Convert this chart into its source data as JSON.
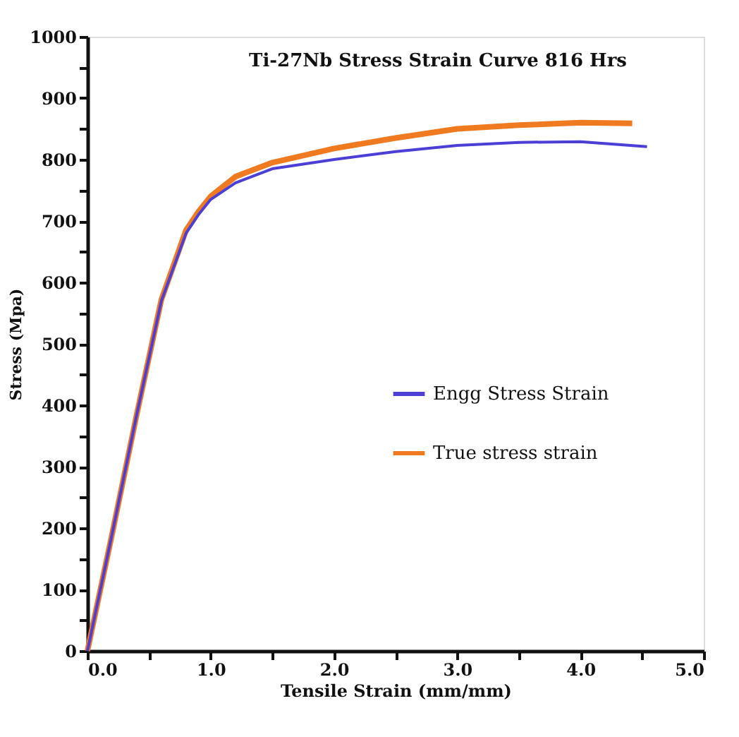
{
  "chart_data": {
    "type": "line",
    "title": "Ti-27Nb Stress Strain Curve 816 Hrs",
    "xlabel": "Tensile Strain (mm/mm)",
    "ylabel": "Stress (Mpa)",
    "xlim": [
      0,
      5
    ],
    "ylim": [
      0,
      1000
    ],
    "xticks": [
      {
        "value": 0,
        "label": "0.0"
      },
      {
        "value": 0.5,
        "label": null
      },
      {
        "value": 1,
        "label": "1.0"
      },
      {
        "value": 1.5,
        "label": null
      },
      {
        "value": 2,
        "label": "2.0"
      },
      {
        "value": 2.5,
        "label": null
      },
      {
        "value": 3,
        "label": "3.0"
      },
      {
        "value": 3.5,
        "label": null
      },
      {
        "value": 4,
        "label": "4.0"
      },
      {
        "value": 4.5,
        "label": null
      },
      {
        "value": 5,
        "label": "5.0"
      }
    ],
    "yticks": [
      0,
      {
        "value": 50,
        "label": null
      },
      100,
      {
        "value": 150,
        "label": null
      },
      200,
      {
        "value": 250,
        "label": null
      },
      300,
      {
        "value": 350,
        "label": null
      },
      400,
      {
        "value": 450,
        "label": null
      },
      500,
      {
        "value": 550,
        "label": null
      },
      600,
      {
        "value": 650,
        "label": null
      },
      700,
      {
        "value": 750,
        "label": null
      },
      800,
      {
        "value": 850,
        "label": null
      },
      900,
      {
        "value": 950,
        "label": null
      },
      1000
    ],
    "grid": false,
    "legend": "right",
    "marker": "none",
    "line_style": "solid",
    "series": [
      {
        "name": "Engg Stress Strain",
        "color": "#4b3fd6",
        "x": [
          0,
          0.2,
          0.4,
          0.6,
          0.8,
          0.9,
          1.0,
          1.2,
          1.5,
          2.0,
          2.5,
          3.0,
          3.5,
          4.0,
          4.54
        ],
        "values": [
          0,
          190,
          385,
          570,
          680,
          710,
          735,
          762,
          785,
          800,
          813,
          823,
          828,
          829,
          821
        ]
      },
      {
        "name": "True stress strain",
        "color": "#f07a20",
        "x": [
          0,
          0.2,
          0.4,
          0.6,
          0.8,
          0.9,
          1.0,
          1.2,
          1.5,
          2.0,
          2.5,
          3.0,
          3.5,
          4.0,
          4.42
        ],
        "values": [
          0,
          190,
          385,
          572,
          685,
          715,
          740,
          772,
          795,
          818,
          835,
          850,
          856,
          860,
          859
        ]
      }
    ]
  }
}
